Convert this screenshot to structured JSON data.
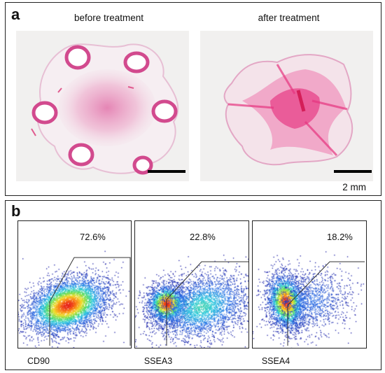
{
  "panel_a": {
    "letter": "a",
    "left_caption": "before treatment",
    "right_caption": "after treatment",
    "scale_label": "2 mm"
  },
  "panel_b": {
    "letter": "b",
    "plots": [
      {
        "marker": "CD90",
        "percent": "72.6%"
      },
      {
        "marker": "SSEA3",
        "percent": "22.8%"
      },
      {
        "marker": "SSEA4",
        "percent": "18.2%"
      }
    ]
  },
  "colors": {
    "stain_dark": "#d63c8a",
    "stain_light": "#e9a4c6",
    "tissue_bg": "#f1f0ef",
    "frame": "#222222"
  }
}
